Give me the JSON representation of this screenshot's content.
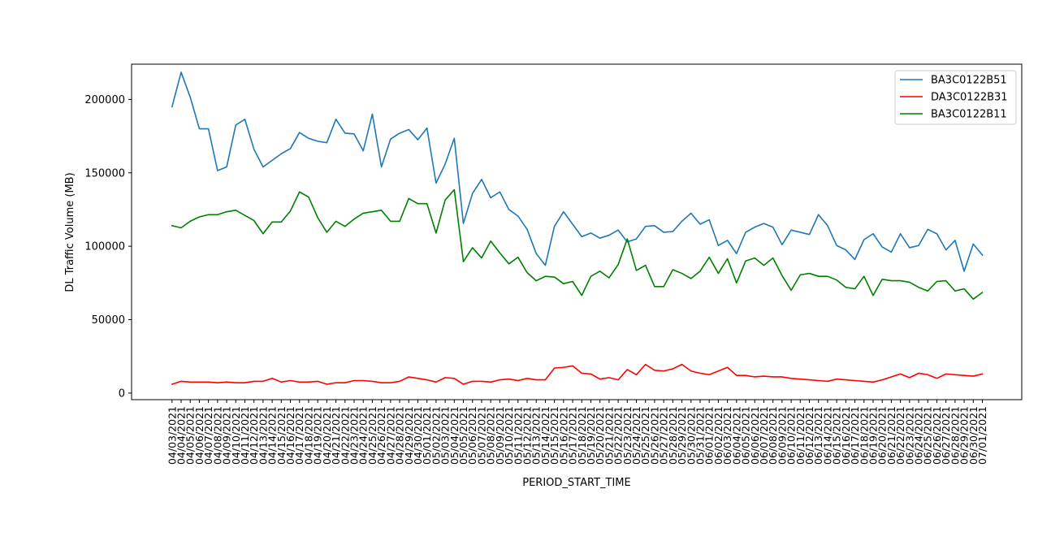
{
  "chart_data": {
    "type": "line",
    "title": "",
    "xlabel": "PERIOD_START_TIME",
    "ylabel": "DL Traffic Volume (MB)",
    "ylim": [
      -4500,
      224000
    ],
    "yticks": [
      0,
      50000,
      100000,
      150000,
      200000
    ],
    "ytick_labels": [
      "0",
      "50000",
      "100000",
      "150000",
      "200000"
    ],
    "grid": false,
    "legend_position": "top-right",
    "categories": [
      "04/03/2021",
      "04/04/2021",
      "04/05/2021",
      "04/06/2021",
      "04/07/2021",
      "04/08/2021",
      "04/09/2021",
      "04/10/2021",
      "04/11/2021",
      "04/12/2021",
      "04/13/2021",
      "04/14/2021",
      "04/15/2021",
      "04/16/2021",
      "04/17/2021",
      "04/18/2021",
      "04/19/2021",
      "04/20/2021",
      "04/21/2021",
      "04/22/2021",
      "04/23/2021",
      "04/24/2021",
      "04/25/2021",
      "04/26/2021",
      "04/27/2021",
      "04/28/2021",
      "04/29/2021",
      "04/30/2021",
      "05/01/2021",
      "05/02/2021",
      "05/03/2021",
      "05/04/2021",
      "05/05/2021",
      "05/06/2021",
      "05/07/2021",
      "05/08/2021",
      "05/09/2021",
      "05/10/2021",
      "05/11/2021",
      "05/12/2021",
      "05/13/2021",
      "05/14/2021",
      "05/15/2021",
      "05/16/2021",
      "05/17/2021",
      "05/18/2021",
      "05/19/2021",
      "05/20/2021",
      "05/21/2021",
      "05/22/2021",
      "05/23/2021",
      "05/24/2021",
      "05/25/2021",
      "05/26/2021",
      "05/27/2021",
      "05/28/2021",
      "05/29/2021",
      "05/30/2021",
      "05/31/2021",
      "06/01/2021",
      "06/02/2021",
      "06/03/2021",
      "06/04/2021",
      "06/05/2021",
      "06/06/2021",
      "06/07/2021",
      "06/08/2021",
      "06/09/2021",
      "06/10/2021",
      "06/11/2021",
      "06/12/2021",
      "06/13/2021",
      "06/14/2021",
      "06/15/2021",
      "06/16/2021",
      "06/17/2021",
      "06/18/2021",
      "06/19/2021",
      "06/20/2021",
      "06/21/2021",
      "06/22/2021",
      "06/23/2021",
      "06/24/2021",
      "06/25/2021",
      "06/26/2021",
      "06/27/2021",
      "06/28/2021",
      "06/29/2021",
      "06/30/2021",
      "07/01/2021"
    ],
    "series": [
      {
        "name": "BA3C0122B51",
        "color": "#1f77b4",
        "values": [
          195000,
          218500,
          201500,
          180000,
          180000,
          151500,
          154000,
          182500,
          186500,
          166000,
          154000,
          158500,
          163000,
          166500,
          177500,
          173500,
          171500,
          170500,
          186500,
          177000,
          176500,
          165000,
          190000,
          154000,
          173000,
          177000,
          179500,
          172500,
          180500,
          143000,
          156000,
          173500,
          115500,
          136000,
          145500,
          133000,
          137000,
          125000,
          120500,
          111500,
          95000,
          87000,
          113500,
          123500,
          115000,
          106500,
          109000,
          105500,
          107500,
          111000,
          103000,
          105000,
          113500,
          114000,
          109500,
          110000,
          117000,
          122500,
          115000,
          118000,
          100500,
          104000,
          95000,
          109500,
          113000,
          115500,
          113000,
          101000,
          111000,
          109500,
          108000,
          121500,
          114000,
          100500,
          97500,
          91000,
          104500,
          108500,
          99500,
          96000,
          108500,
          99000,
          100500,
          111500,
          108500,
          97500,
          104000,
          83000,
          101500,
          94000
        ]
      },
      {
        "name": "DA3C0122B31",
        "color": "#ff0000",
        "values": [
          6000,
          8000,
          7500,
          7500,
          7500,
          7000,
          7500,
          7000,
          7000,
          8000,
          8000,
          10000,
          7500,
          8500,
          7500,
          7500,
          8000,
          6000,
          7000,
          7000,
          8500,
          8500,
          8000,
          7000,
          7000,
          8000,
          11000,
          10000,
          9000,
          7500,
          10500,
          10000,
          6000,
          8000,
          8000,
          7500,
          9000,
          9500,
          8500,
          10000,
          9000,
          9000,
          17000,
          17500,
          18500,
          13500,
          13000,
          9500,
          10500,
          9000,
          16000,
          12500,
          19500,
          15500,
          15000,
          16500,
          19500,
          15000,
          13500,
          12500,
          15000,
          17500,
          12000,
          12000,
          11000,
          11500,
          11000,
          11000,
          10000,
          9500,
          9000,
          8500,
          8000,
          9500,
          9000,
          8500,
          8000,
          7500,
          9000,
          11000,
          13000,
          10500,
          13500,
          12500,
          10000,
          13000,
          12500,
          12000,
          11500,
          13000
        ]
      },
      {
        "name": "BA3C0122B11",
        "color": "#008000",
        "values": [
          114000,
          112500,
          117000,
          120000,
          121500,
          121500,
          123500,
          124500,
          121000,
          117500,
          108500,
          116500,
          116500,
          124000,
          137000,
          133500,
          119500,
          109500,
          117000,
          113500,
          118500,
          122500,
          123500,
          124500,
          117000,
          117000,
          132500,
          129000,
          129000,
          109000,
          131500,
          138500,
          89500,
          99000,
          92000,
          103500,
          95500,
          88000,
          92500,
          82000,
          76500,
          79500,
          79000,
          74500,
          76000,
          66500,
          79500,
          83000,
          78500,
          87500,
          105000,
          83500,
          87000,
          72500,
          72500,
          84000,
          81500,
          78000,
          83000,
          92500,
          81500,
          91500,
          75000,
          90000,
          92000,
          87000,
          92000,
          80000,
          70000,
          80500,
          81500,
          79500,
          79500,
          77000,
          72000,
          71000,
          79500,
          66500,
          77500,
          76500,
          76500,
          75500,
          72000,
          69500,
          76000,
          76500,
          69500,
          71000,
          64000,
          68500
        ]
      }
    ]
  }
}
